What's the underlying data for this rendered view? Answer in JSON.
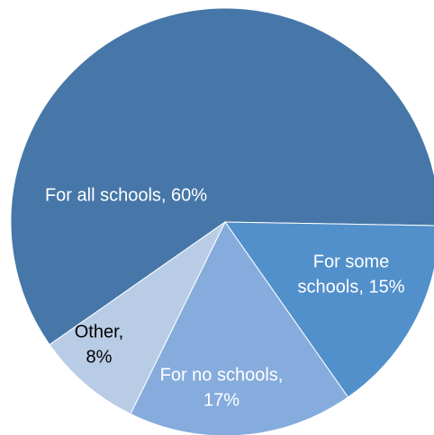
{
  "chart_data": {
    "type": "pie",
    "title": "",
    "start_angle_deg": 235,
    "slices": [
      {
        "label_lines": [
          "For all schools, 60%"
        ],
        "value": 60,
        "color": "#4677a8",
        "label_color": "#ffffff"
      },
      {
        "label_lines": [
          "For some",
          "schools, 15%"
        ],
        "value": 15,
        "color": "#5290cb",
        "label_color": "#ffffff"
      },
      {
        "label_lines": [
          "For no schools,",
          "17%"
        ],
        "value": 17,
        "color": "#86acdd",
        "label_color": "#ffffff"
      },
      {
        "label_lines": [
          "Other,",
          "8%"
        ],
        "value": 8,
        "color": "#b8cce6",
        "label_color": "#000000"
      }
    ]
  }
}
